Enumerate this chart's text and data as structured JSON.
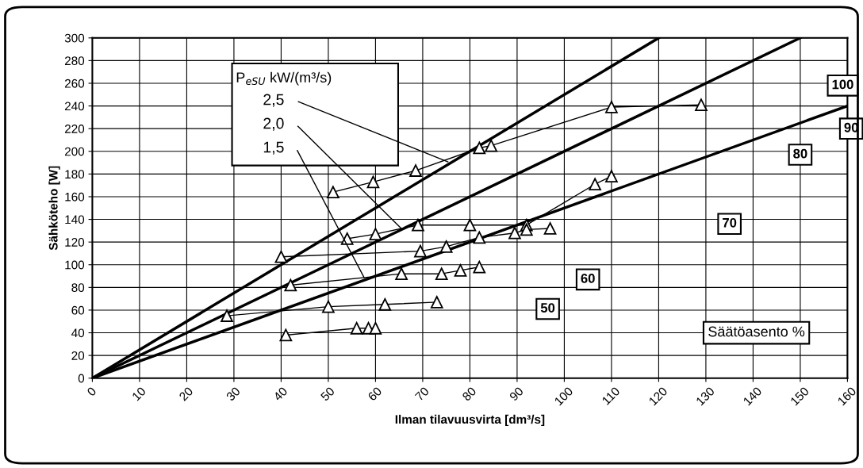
{
  "chart_data": {
    "type": "line",
    "xlabel": "Ilman tilavuusvirta [dm³/s]",
    "ylabel": "Sähköteho [W]",
    "xlim": [
      0,
      160
    ],
    "xticks": [
      0,
      10,
      20,
      30,
      40,
      50,
      60,
      70,
      80,
      90,
      100,
      110,
      120,
      130,
      140,
      150,
      160
    ],
    "ylim": [
      0,
      300
    ],
    "yticks": [
      0,
      20,
      40,
      60,
      80,
      100,
      120,
      140,
      160,
      180,
      200,
      220,
      240,
      260,
      280,
      300
    ],
    "grid": true,
    "marker": "triangle",
    "line_style": "solid",
    "series": [
      {
        "color": "#000000",
        "marker": "none",
        "x": [
          0,
          120
        ],
        "values": [
          0,
          300
        ]
      },
      {
        "color": "#000000",
        "marker": "none",
        "x": [
          0,
          150
        ],
        "values": [
          0,
          300
        ]
      },
      {
        "color": "#000000",
        "marker": "none",
        "x": [
          0,
          160
        ],
        "values": [
          0,
          240
        ]
      },
      {
        "color": "#000000",
        "x": [
          51,
          59.5,
          68.5,
          82,
          84.5,
          110,
          129
        ],
        "values": [
          164,
          173,
          183,
          203,
          205,
          239,
          241
        ]
      },
      {
        "color": "#000000",
        "x": [
          54,
          60,
          69,
          80,
          92,
          106.5,
          110
        ],
        "values": [
          123,
          127,
          135,
          135,
          135,
          171,
          178
        ]
      },
      {
        "color": "#000000",
        "x": [
          40,
          69.5,
          75,
          82,
          89.5,
          92,
          97
        ],
        "values": [
          107,
          112,
          116,
          124,
          128,
          131,
          132
        ]
      },
      {
        "color": "#000000",
        "x": [
          42,
          65.5,
          74,
          78,
          82
        ],
        "values": [
          82,
          92,
          92,
          95,
          98
        ]
      },
      {
        "color": "#000000",
        "x": [
          28.5,
          50,
          62,
          73
        ],
        "values": [
          55,
          63,
          65,
          67
        ]
      },
      {
        "color": "#000000",
        "x": [
          41,
          56,
          58.5,
          60
        ],
        "values": [
          38,
          44,
          44,
          44
        ]
      }
    ],
    "annotations": [
      "P$_{eSU}$ kW/(m³/s)",
      {
        "text": "2,5",
        "x": 75.8,
        "y": 190
      },
      {
        "text": "2,0",
        "x": 65.7,
        "y": 131
      },
      {
        "text": "1,5",
        "x": 57.8,
        "y": 87
      },
      "100",
      "90",
      "80",
      "70",
      "60",
      "50",
      "Säätöasento %"
    ]
  }
}
